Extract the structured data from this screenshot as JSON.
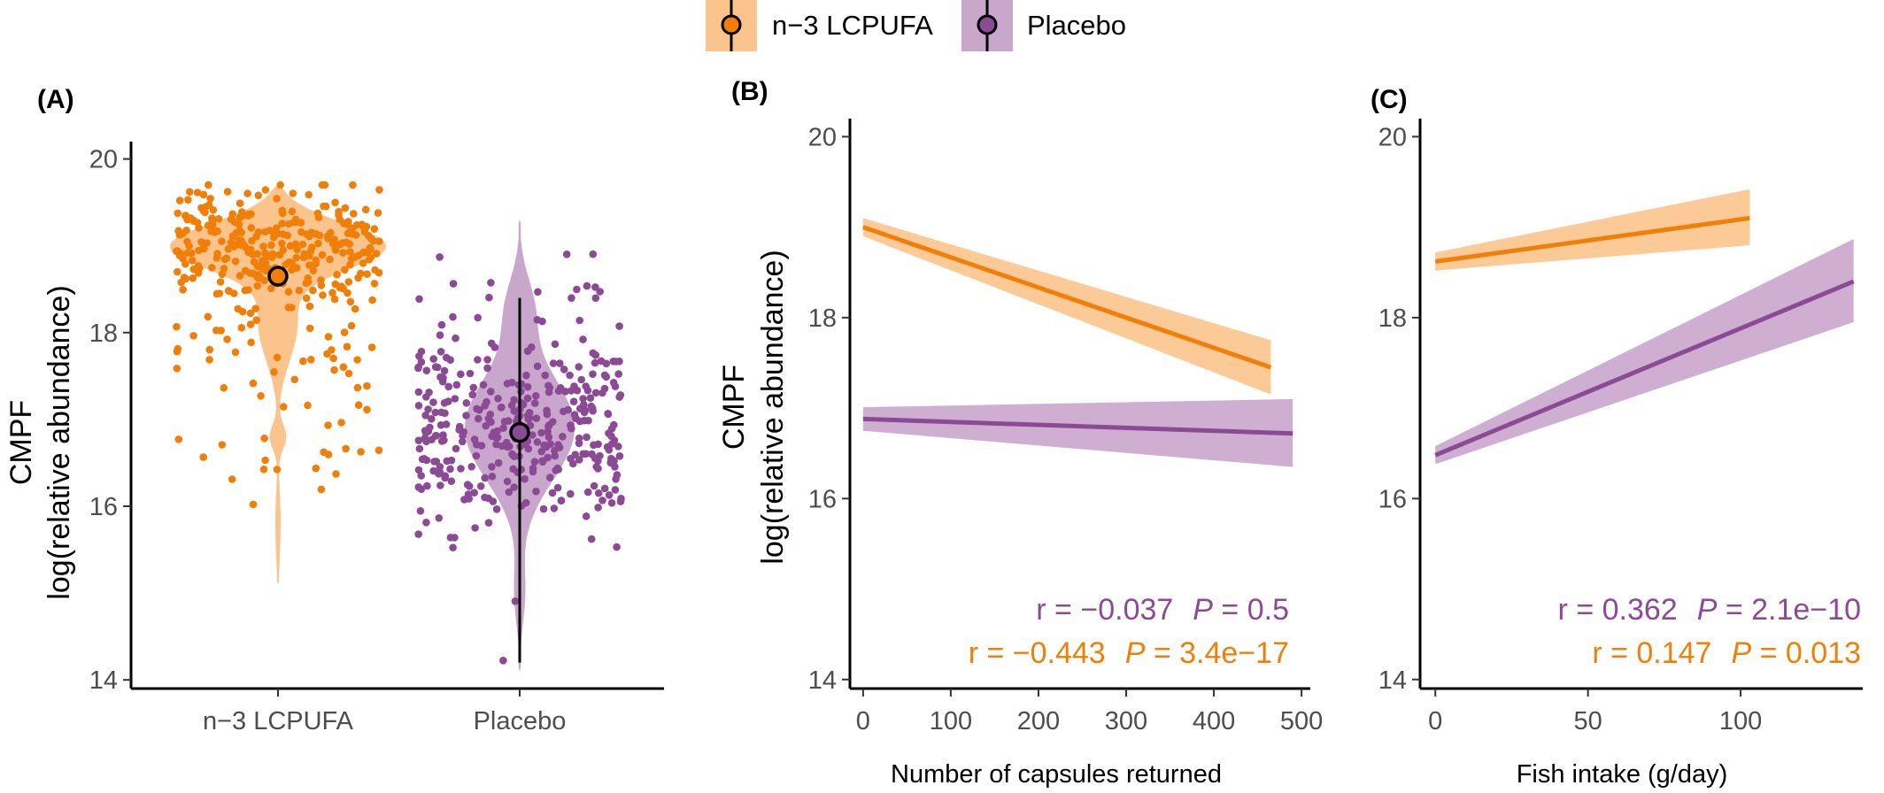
{
  "colors": {
    "n3": "#F07F09",
    "n3_fill": "#FBC48C",
    "placebo": "#8B4A94",
    "placebo_fill": "#C9A6CC",
    "axis": "#000000"
  },
  "legend": {
    "items": [
      {
        "label": "n−3 LCPUFA",
        "color_key": "n3"
      },
      {
        "label": "Placebo",
        "color_key": "placebo"
      }
    ]
  },
  "chart_data": [
    {
      "panel": "(A)",
      "type": "scatter",
      "subtype": "violin-jitter",
      "ylabel_lines": [
        "CMPF",
        "log(relative abundance)"
      ],
      "xlabel": "",
      "categories": [
        "n−3 LCPUFA",
        "Placebo"
      ],
      "ylim": [
        13.9,
        20.2
      ],
      "yticks": [
        14,
        16,
        18,
        20
      ],
      "grid": false,
      "series": [
        {
          "name": "n−3 LCPUFA",
          "mean": 18.65,
          "ci": [
            18.55,
            18.75
          ],
          "range": [
            15.1,
            19.7
          ],
          "center": 19.0,
          "n_points": 360
        },
        {
          "name": "Placebo",
          "mean": 16.85,
          "ci": [
            14.2,
            18.4
          ],
          "range": [
            14.1,
            19.3
          ],
          "center": 16.9,
          "n_points": 360
        }
      ]
    },
    {
      "panel": "(B)",
      "type": "line",
      "ylabel_lines": [
        "CMPF",
        "log(relative abundance)"
      ],
      "xlabel": "Number of capsules returned",
      "xlim": [
        -15,
        510
      ],
      "ylim": [
        13.9,
        20.2
      ],
      "xticks": [
        0,
        100,
        200,
        300,
        400,
        500
      ],
      "yticks": [
        14,
        16,
        18,
        20
      ],
      "grid": false,
      "series": [
        {
          "name": "n−3 LCPUFA",
          "x": [
            0,
            465
          ],
          "y": [
            19.0,
            17.45
          ],
          "ci_low": [
            18.9,
            17.15
          ],
          "ci_high": [
            19.1,
            17.75
          ]
        },
        {
          "name": "Placebo",
          "x": [
            0,
            490
          ],
          "y": [
            16.88,
            16.72
          ],
          "ci_low": [
            16.75,
            16.35
          ],
          "ci_high": [
            17.01,
            17.1
          ]
        }
      ],
      "annotations": [
        {
          "r_text": "r = −0.037",
          "p_label": "P",
          "p_text": " = 0.5",
          "color_key": "placebo"
        },
        {
          "r_text": "r = −0.443",
          "p_label": "P",
          "p_text": " = 3.4e−17",
          "color_key": "n3"
        }
      ]
    },
    {
      "panel": "(C)",
      "type": "line",
      "ylabel_lines": [],
      "xlabel": "Fish intake (g/day)",
      "xlim": [
        -5,
        140
      ],
      "ylim": [
        13.9,
        20.2
      ],
      "xticks": [
        0,
        50,
        100
      ],
      "yticks": [
        14,
        16,
        18,
        20
      ],
      "grid": false,
      "series": [
        {
          "name": "n−3 LCPUFA",
          "x": [
            0,
            103
          ],
          "y": [
            18.62,
            19.1
          ],
          "ci_low": [
            18.52,
            18.8
          ],
          "ci_high": [
            18.72,
            19.42
          ]
        },
        {
          "name": "Placebo",
          "x": [
            0,
            137
          ],
          "y": [
            16.48,
            18.4
          ],
          "ci_low": [
            16.38,
            17.95
          ],
          "ci_high": [
            16.58,
            18.87
          ]
        }
      ],
      "annotations": [
        {
          "r_text": "r = 0.362",
          "p_label": "P",
          "p_text": " = 2.1e−10",
          "color_key": "placebo"
        },
        {
          "r_text": "r = 0.147",
          "p_label": "P",
          "p_text": " = 0.013",
          "color_key": "n3"
        }
      ]
    }
  ]
}
